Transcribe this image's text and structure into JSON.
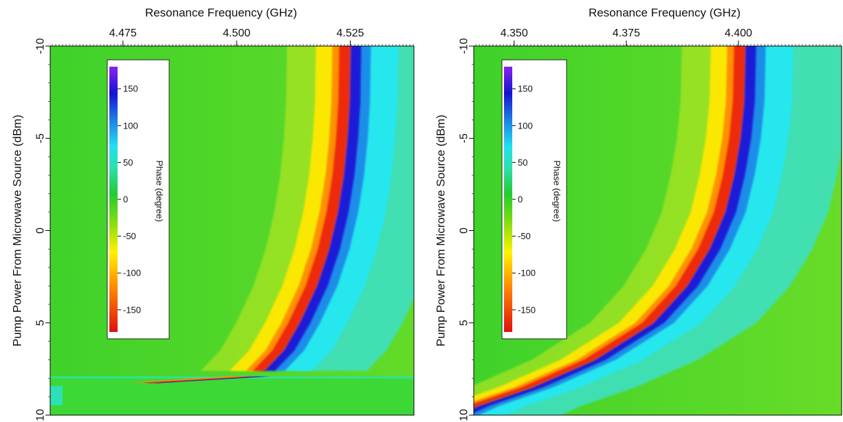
{
  "chart_data": [
    {
      "type": "heatmap",
      "title": "",
      "xlabel": "Resonance Frequency (GHz)",
      "ylabel": "Pump Power From Microwave Source (dBm)",
      "x_ticks": [
        "4.475",
        "4.500",
        "4.525"
      ],
      "x_tick_values": [
        4.475,
        4.5,
        4.525
      ],
      "xlim": [
        4.459,
        4.539
      ],
      "y_ticks": [
        "-10",
        "-5",
        "0",
        "5",
        "10"
      ],
      "y_tick_values": [
        -10,
        -5,
        0,
        5,
        10
      ],
      "ylim": [
        -10,
        10
      ],
      "y_inverted": true,
      "colorbar": {
        "label": "Phase (degree)",
        "range": [
          -180,
          180
        ],
        "ticks": [
          "150",
          "100",
          "50",
          "0",
          "-50",
          "-100",
          "-150"
        ],
        "tick_values": [
          150,
          100,
          50,
          0,
          -50,
          -100,
          -150
        ],
        "placement": "upper-left inside"
      },
      "resonance_curve": [
        {
          "power": -10,
          "freq": 4.525
        },
        {
          "power": -7,
          "freq": 4.5248
        },
        {
          "power": -5,
          "freq": 4.5243
        },
        {
          "power": -3,
          "freq": 4.5235
        },
        {
          "power": -1,
          "freq": 4.5222
        },
        {
          "power": 1,
          "freq": 4.5203
        },
        {
          "power": 3,
          "freq": 4.5176
        },
        {
          "power": 5,
          "freq": 4.5138
        },
        {
          "power": 6.5,
          "freq": 4.5103
        },
        {
          "power": 7.6,
          "freq": 4.506
        }
      ],
      "bifurcation": {
        "power": 7.9,
        "freq_low": 4.481,
        "freq_high": 4.5045
      }
    },
    {
      "type": "heatmap",
      "title": "",
      "xlabel": "Resonance Frequency (GHz)",
      "ylabel": "Pump Power From Microwave Source (dBm)",
      "x_ticks": [
        "4.350",
        "4.375",
        "4.400"
      ],
      "x_tick_values": [
        4.35,
        4.375,
        4.4
      ],
      "xlim": [
        4.341,
        4.423
      ],
      "y_ticks": [
        "-10",
        "-5",
        "0",
        "5",
        "10"
      ],
      "y_tick_values": [
        -10,
        -5,
        0,
        5,
        10
      ],
      "ylim": [
        -10,
        10
      ],
      "y_inverted": true,
      "colorbar": {
        "label": "Phase (degree)",
        "range": [
          -180,
          180
        ],
        "ticks": [
          "150",
          "100",
          "50",
          "0",
          "-50",
          "-100",
          "-150"
        ],
        "tick_values": [
          150,
          100,
          50,
          0,
          -50,
          -100,
          -150
        ],
        "placement": "upper-left inside"
      },
      "resonance_curve": [
        {
          "power": -10,
          "freq": 4.4015
        },
        {
          "power": -7,
          "freq": 4.4012
        },
        {
          "power": -5,
          "freq": 4.4004
        },
        {
          "power": -3,
          "freq": 4.399
        },
        {
          "power": -1,
          "freq": 4.397
        },
        {
          "power": 1,
          "freq": 4.3935
        },
        {
          "power": 3,
          "freq": 4.3885
        },
        {
          "power": 5,
          "freq": 4.381
        },
        {
          "power": 7,
          "freq": 4.368
        },
        {
          "power": 8.5,
          "freq": 4.354
        },
        {
          "power": 9.5,
          "freq": 4.342
        }
      ]
    }
  ]
}
